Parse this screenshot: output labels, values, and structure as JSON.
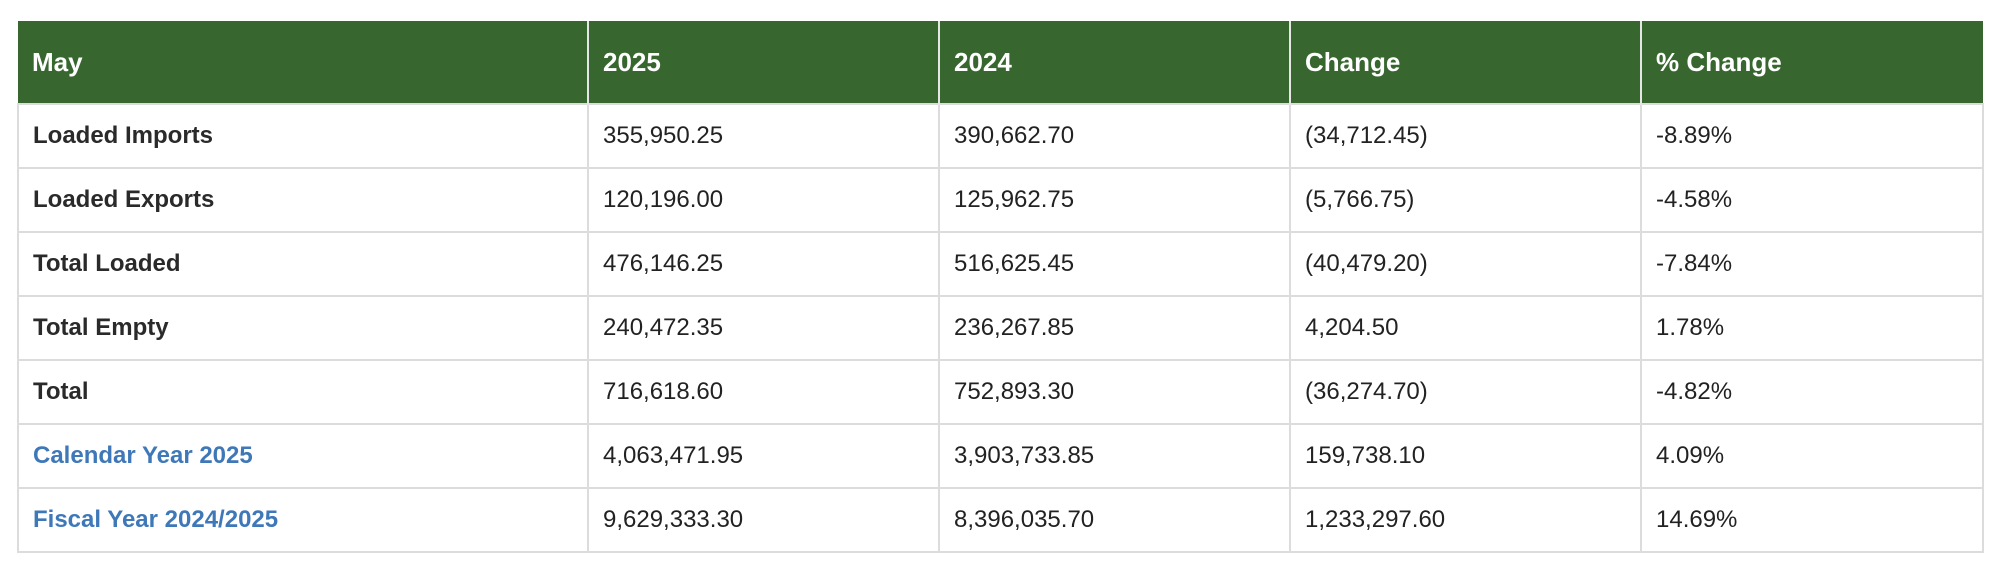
{
  "table": {
    "headers": [
      "May",
      "2025",
      "2024",
      "Change",
      "% Change"
    ],
    "rows": [
      {
        "label": "Loaded Imports",
        "y2025": "355,950.25",
        "y2024": "390,662.70",
        "change": "(34,712.45)",
        "pct": "-8.89%",
        "is_link": false
      },
      {
        "label": "Loaded Exports",
        "y2025": "120,196.00",
        "y2024": "125,962.75",
        "change": "(5,766.75)",
        "pct": "-4.58%",
        "is_link": false
      },
      {
        "label": "Total Loaded",
        "y2025": "476,146.25",
        "y2024": "516,625.45",
        "change": "(40,479.20)",
        "pct": "-7.84%",
        "is_link": false
      },
      {
        "label": "Total Empty",
        "y2025": "240,472.35",
        "y2024": "236,267.85",
        "change": "4,204.50",
        "pct": "1.78%",
        "is_link": false
      },
      {
        "label": "Total",
        "y2025": "716,618.60",
        "y2024": "752,893.30",
        "change": "(36,274.70)",
        "pct": "-4.82%",
        "is_link": false
      },
      {
        "label": "Calendar Year 2025",
        "y2025": "4,063,471.95",
        "y2024": "3,903,733.85",
        "change": "159,738.10",
        "pct": "4.09%",
        "is_link": true
      },
      {
        "label": "Fiscal Year 2024/2025",
        "y2025": "9,629,333.30",
        "y2024": "8,396,035.70",
        "change": "1,233,297.60",
        "pct": "14.69%",
        "is_link": true
      }
    ]
  },
  "colors": {
    "header_bg": "#38662f",
    "link": "#3f78b8"
  }
}
